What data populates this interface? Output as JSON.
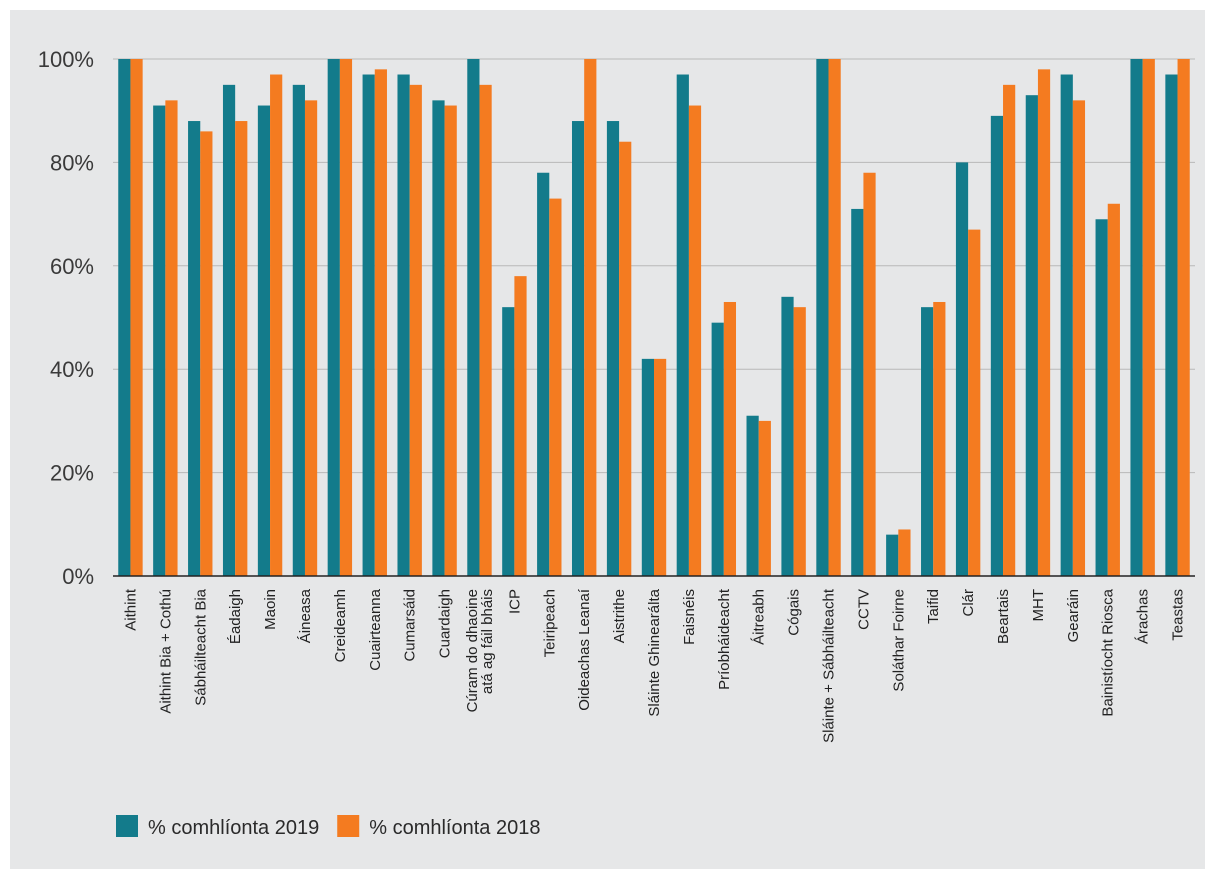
{
  "colors": {
    "series_2019": "#137b8b",
    "series_2018": "#f47b20",
    "grid": "#b8b8b8",
    "axis": "#222222",
    "background": "#e6e7e8"
  },
  "chart_data": {
    "type": "bar",
    "title": "",
    "xlabel": "",
    "ylabel": "",
    "ylim": [
      0,
      100
    ],
    "yticks": [
      0,
      20,
      40,
      60,
      80,
      100
    ],
    "ytick_labels": [
      "0%",
      "20%",
      "40%",
      "60%",
      "80%",
      "100%"
    ],
    "grid": true,
    "legend_position": "bottom-left",
    "categories": [
      "Aithint",
      "Aithint Bia + Cothú",
      "Sábháilteacht Bia",
      "Éadaigh",
      "Maoin",
      "Áineasa",
      "Creideamh",
      "Cuairteanna",
      "Cumarsáid",
      "Cuardaigh",
      "Cúram do dhaoine atá ag fáil bháis",
      "ICP",
      "Teiripeach",
      "Oideachas Leanaí",
      "Aistrithe",
      "Sláinte Ghinearálta",
      "Faisnéis",
      "Príobháideacht",
      "Áitreabh",
      "Cógais",
      "Sláinte + Sábháilteacht",
      "CCTV",
      "Soláthar Foirne",
      "Taifid",
      "Clár",
      "Beartais",
      "MHT",
      "Gearáin",
      "Bainistíocht Riosca",
      "Árachas",
      "Teastas"
    ],
    "category_lines": [
      [
        "Aithint"
      ],
      [
        "Aithint Bia + Cothú"
      ],
      [
        "Sábháilteacht Bia"
      ],
      [
        "Éadaigh"
      ],
      [
        "Maoin"
      ],
      [
        "Áineasa"
      ],
      [
        "Creideamh"
      ],
      [
        "Cuairteanna"
      ],
      [
        "Cumarsáid"
      ],
      [
        "Cuardaigh"
      ],
      [
        "Cúram do dhaoine",
        "atá ag fáil bháis"
      ],
      [
        "ICP"
      ],
      [
        "Teiripeach"
      ],
      [
        "Oideachas Leanaí"
      ],
      [
        "Aistrithe"
      ],
      [
        "Sláinte Ghinearálta"
      ],
      [
        "Faisnéis"
      ],
      [
        "Príobháideacht"
      ],
      [
        "Áitreabh"
      ],
      [
        "Cógais"
      ],
      [
        "Sláinte + Sábháilteacht"
      ],
      [
        "CCTV"
      ],
      [
        "Soláthar Foirne"
      ],
      [
        "Taifid"
      ],
      [
        "Clár"
      ],
      [
        "Beartais"
      ],
      [
        "MHT"
      ],
      [
        "Gearáin"
      ],
      [
        "Bainistíocht Riosca"
      ],
      [
        "Árachas"
      ],
      [
        "Teastas"
      ]
    ],
    "series": [
      {
        "name": "% comhlíonta 2019",
        "color": "#137b8b",
        "values": [
          100,
          91,
          88,
          95,
          91,
          95,
          100,
          97,
          97,
          92,
          100,
          52,
          78,
          88,
          88,
          42,
          97,
          49,
          31,
          54,
          100,
          71,
          8,
          52,
          80,
          89,
          93,
          97,
          69,
          100,
          97
        ]
      },
      {
        "name": "% comhlíonta 2018",
        "color": "#f47b20",
        "values": [
          100,
          92,
          86,
          88,
          97,
          92,
          100,
          98,
          95,
          91,
          95,
          58,
          73,
          100,
          84,
          42,
          91,
          53,
          30,
          52,
          100,
          78,
          9,
          53,
          67,
          95,
          98,
          92,
          72,
          100,
          100
        ]
      }
    ]
  }
}
